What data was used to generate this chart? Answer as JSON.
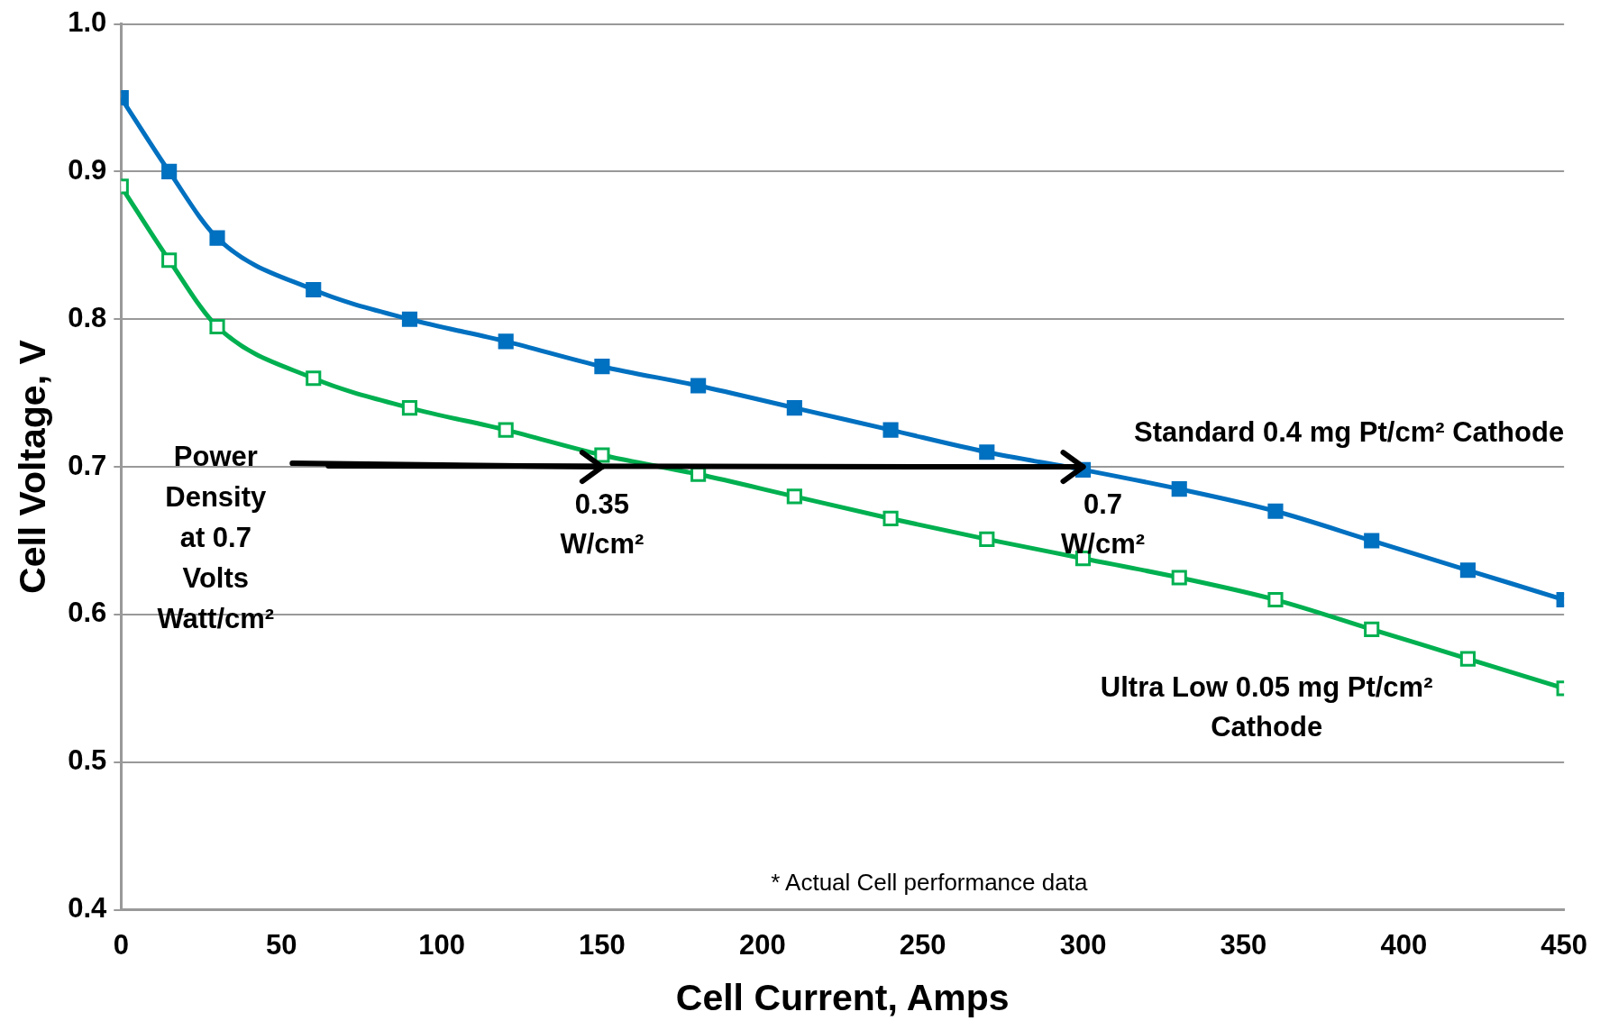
{
  "chart_data": {
    "type": "line",
    "xlabel": "Cell Current, Amps",
    "ylabel": "Cell Voltage, V",
    "x": [
      0,
      15,
      30,
      60,
      90,
      120,
      150,
      180,
      210,
      240,
      270,
      300,
      330,
      360,
      390,
      420,
      450
    ],
    "series": [
      {
        "name": "Standard 0.4 mg Pt/cm² Cathode",
        "color": "#0070c0",
        "values": [
          0.95,
          0.9,
          0.855,
          0.82,
          0.8,
          0.785,
          0.768,
          0.755,
          0.74,
          0.725,
          0.71,
          0.698,
          0.685,
          0.67,
          0.65,
          0.63,
          0.61
        ]
      },
      {
        "name": "Ultra Low 0.05 mg Pt/cm²\nCathode",
        "color": "#00b050",
        "values": [
          0.89,
          0.84,
          0.795,
          0.76,
          0.74,
          0.725,
          0.708,
          0.695,
          0.68,
          0.665,
          0.651,
          0.638,
          0.625,
          0.61,
          0.59,
          0.57,
          0.55
        ]
      }
    ],
    "xlim": [
      0,
      450
    ],
    "xticks": [
      0,
      50,
      100,
      150,
      200,
      250,
      300,
      350,
      400,
      450
    ],
    "ylim": [
      0.4,
      1.0
    ],
    "yticks": [
      0.4,
      0.5,
      0.6,
      0.7,
      0.8,
      0.9,
      {
        "value": 1,
        "label": "1.0"
      }
    ],
    "grid": "y",
    "legend": false,
    "marker": "square",
    "line_style": "solid",
    "annotations": [
      "Power\nDensity\nat 0.7\nVolts\nWatt/cm²",
      "0.35\nW/cm²",
      "0.7\nW/cm²",
      "* Actual Cell performance data"
    ]
  }
}
